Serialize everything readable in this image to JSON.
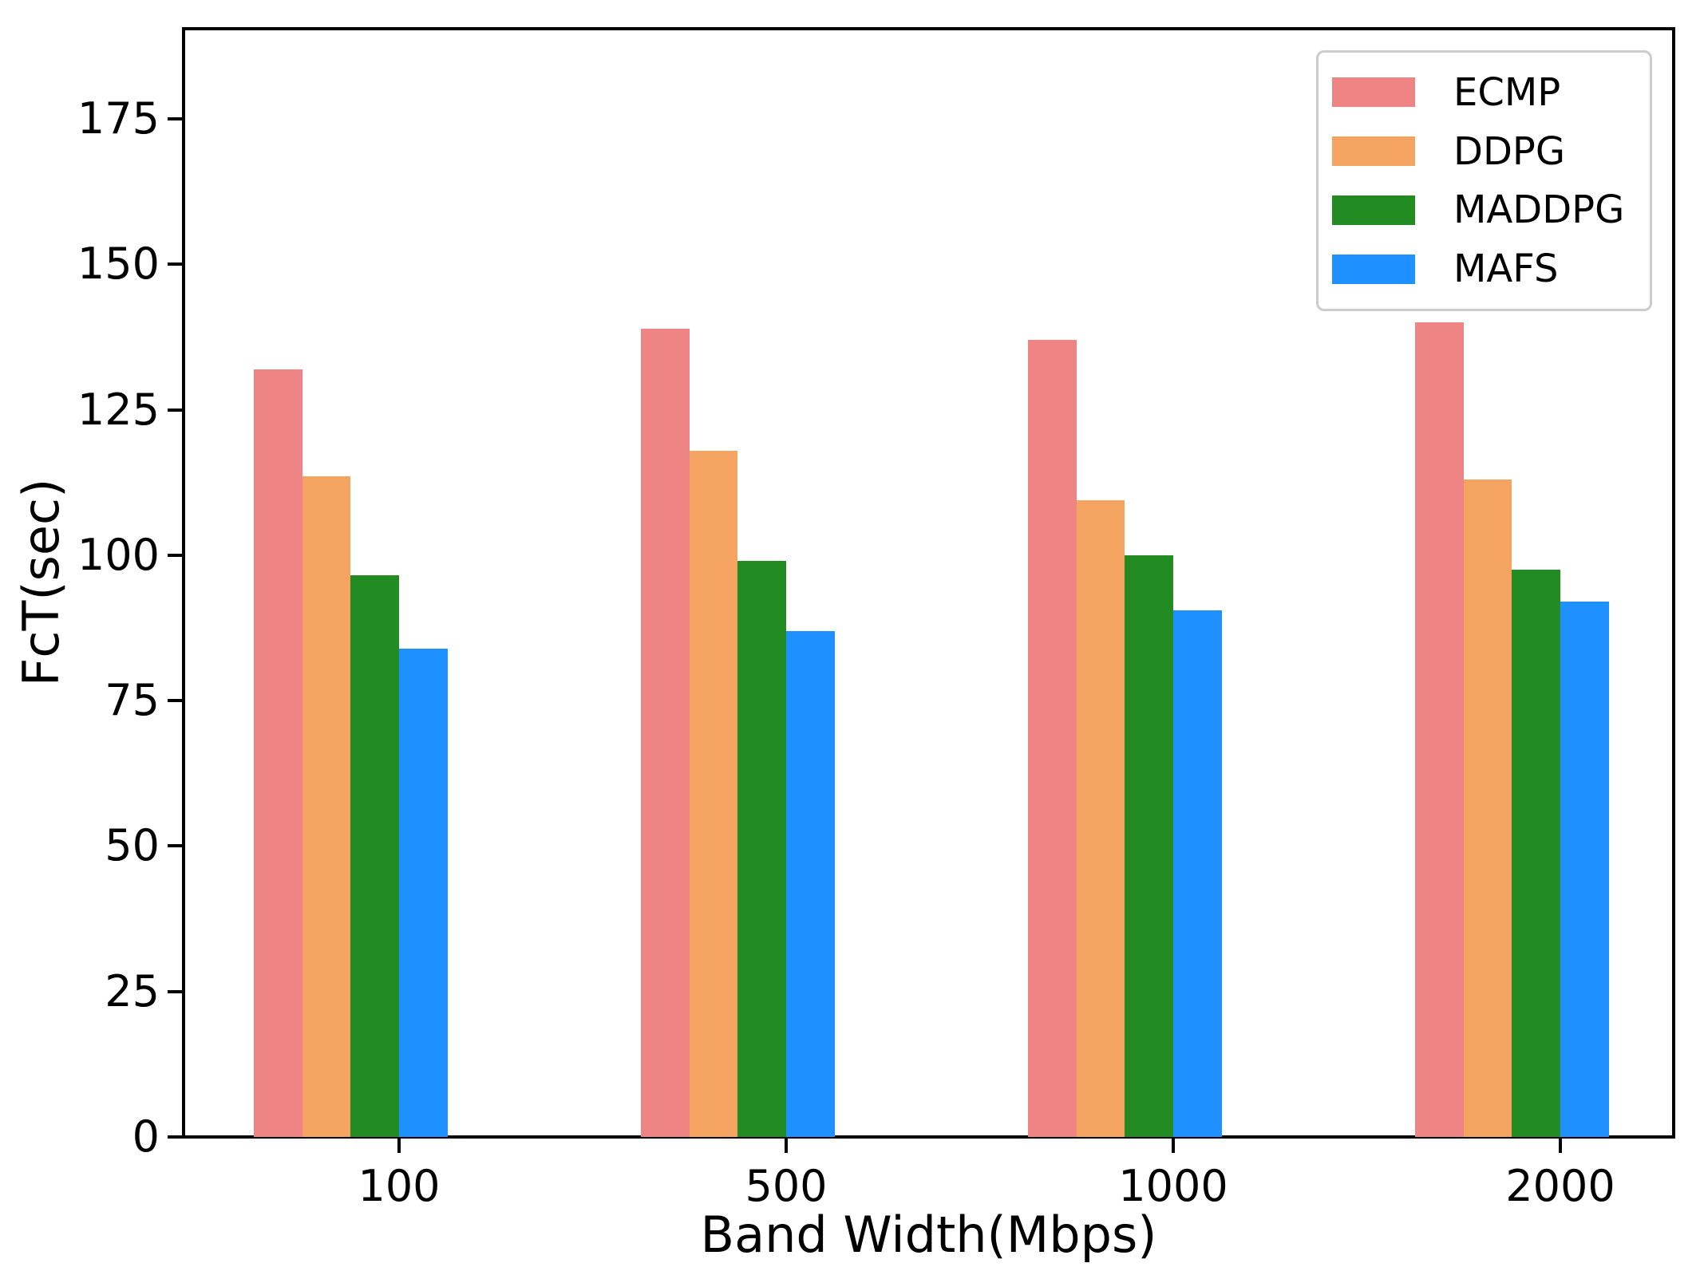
{
  "chart_data": {
    "type": "bar",
    "title": "",
    "xlabel": "Band Width(Mbps)",
    "ylabel": "FcT(sec)",
    "categories": [
      "100",
      "500",
      "1000",
      "2000"
    ],
    "series": [
      {
        "name": "ECMP",
        "color": "#ee8484",
        "values": [
          132,
          139,
          137,
          140
        ]
      },
      {
        "name": "DDPG",
        "color": "#f4a460",
        "values": [
          113.5,
          118,
          109.5,
          113
        ]
      },
      {
        "name": "MADDPG",
        "color": "#228b22",
        "values": [
          96.5,
          99,
          100,
          97.5
        ]
      },
      {
        "name": "MAFS",
        "color": "#1e90ff",
        "values": [
          84,
          87,
          90.5,
          92
        ]
      }
    ],
    "yticks": [
      0,
      25,
      50,
      75,
      100,
      125,
      150,
      175
    ],
    "ylim": [
      0,
      190.5
    ],
    "grid": false,
    "legend_position": "upper right",
    "axis_color": "#000000",
    "background_color": "#ffffff"
  }
}
